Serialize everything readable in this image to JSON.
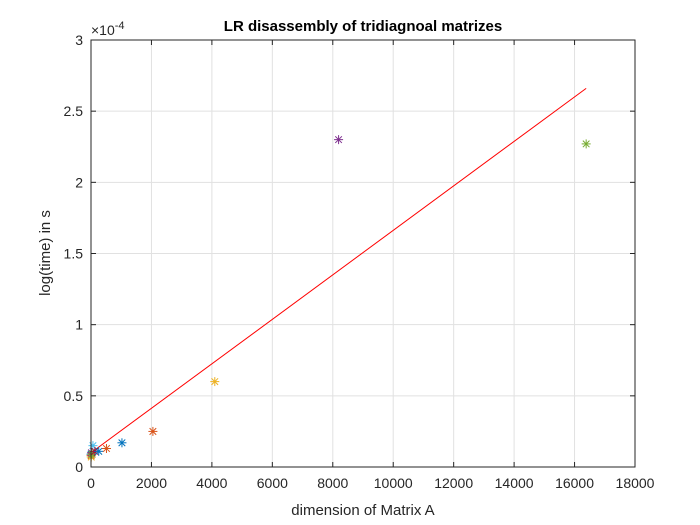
{
  "chart_data": {
    "type": "scatter",
    "title": "LR disassembly of tridiagnoal matrizes",
    "xlabel": "dimension of Matrix A",
    "ylabel": "log(time) in s",
    "xlim": [
      0,
      18000
    ],
    "ylim": [
      0,
      3
    ],
    "y_exponent_label": "×10",
    "y_exponent_power": "-4",
    "x_ticks": [
      0,
      2000,
      4000,
      6000,
      8000,
      10000,
      12000,
      14000,
      16000,
      18000
    ],
    "y_ticks": [
      0,
      0.5,
      1,
      1.5,
      2,
      2.5,
      3
    ],
    "x_tick_labels": [
      "0",
      "2000",
      "4000",
      "6000",
      "8000",
      "10000",
      "12000",
      "14000",
      "16000",
      "18000"
    ],
    "y_tick_labels": [
      "0",
      "0.5",
      "1",
      "1.5",
      "2",
      "2.5",
      "3"
    ],
    "grid": true,
    "points": [
      {
        "x": 2,
        "y": 0.09,
        "color": "#0072BD"
      },
      {
        "x": 4,
        "y": 0.08,
        "color": "#D95319"
      },
      {
        "x": 8,
        "y": 0.07,
        "color": "#EDB120"
      },
      {
        "x": 16,
        "y": 0.1,
        "color": "#7E2F8E"
      },
      {
        "x": 32,
        "y": 0.09,
        "color": "#77AC30"
      },
      {
        "x": 64,
        "y": 0.15,
        "color": "#4DBEEE"
      },
      {
        "x": 128,
        "y": 0.11,
        "color": "#A2142F"
      },
      {
        "x": 256,
        "y": 0.11,
        "color": "#0072BD"
      },
      {
        "x": 512,
        "y": 0.13,
        "color": "#D95319"
      },
      {
        "x": 1024,
        "y": 0.17,
        "color": "#0072BD"
      },
      {
        "x": 2048,
        "y": 0.25,
        "color": "#D95319"
      },
      {
        "x": 4096,
        "y": 0.6,
        "color": "#EDB120"
      },
      {
        "x": 8192,
        "y": 2.3,
        "color": "#7E2F8E"
      },
      {
        "x": 16384,
        "y": 2.27,
        "color": "#77AC30"
      }
    ],
    "fit_line": {
      "x": [
        0,
        16384
      ],
      "y": [
        0.1,
        2.66
      ],
      "color": "#FF0000"
    }
  }
}
